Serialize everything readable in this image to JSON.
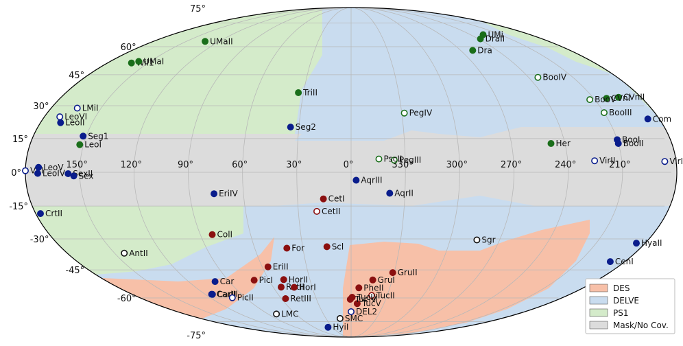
{
  "chart_data": {
    "type": "scatter",
    "projection": "mollweide",
    "title": "",
    "xlabel": "",
    "ylabel": "",
    "grid": true,
    "x_ticks": [
      "150°",
      "120°",
      "90°",
      "60°",
      "30°",
      "0°",
      "330°",
      "300°",
      "270°",
      "240°",
      "210°"
    ],
    "y_ticks": [
      {
        "label": "75°",
        "lat": 75
      },
      {
        "label": "60°",
        "lat": 60
      },
      {
        "label": "45°",
        "lat": 45
      },
      {
        "label": "30°",
        "lat": 30
      },
      {
        "label": "15°",
        "lat": 15
      },
      {
        "label": "0°",
        "lat": 0
      },
      {
        "label": "-15°",
        "lat": -15
      },
      {
        "label": "-30°",
        "lat": -30
      },
      {
        "label": "-45°",
        "lat": -45
      },
      {
        "label": "-60°",
        "lat": -60
      },
      {
        "label": "-75°",
        "lat": -75
      }
    ],
    "legend": {
      "placement": "bottom-right",
      "entries": [
        {
          "name": "DES",
          "color": "#f7c0a8"
        },
        {
          "name": "DELVE",
          "color": "#c9dcef"
        },
        {
          "name": "PS1",
          "color": "#d4ebca"
        },
        {
          "name": "Mask/No Cov.",
          "color": "#dcdcdc"
        }
      ]
    },
    "colors": {
      "des_point": "#8b1010",
      "delve_point": "#0a1d8c",
      "ps1_point": "#1a6e1a",
      "other_point": "#111111",
      "des_region": "#f7c0a8",
      "delve_region": "#c9dcef",
      "ps1_region": "#d4ebca",
      "mask_region": "#dcdcdc"
    },
    "points": [
      {
        "name": "CVnII",
        "ra": 194,
        "dec": 34,
        "survey": "PS1",
        "filled": true
      },
      {
        "name": "CVnI",
        "ra": 202,
        "dec": 33.5,
        "survey": "PS1",
        "filled": true
      },
      {
        "name": "BooIII",
        "ra": 210,
        "dec": 26.8,
        "survey": "PS1",
        "filled": false
      },
      {
        "name": "BooV",
        "ra": 213,
        "dec": 32.9,
        "survey": "PS1",
        "filled": false
      },
      {
        "name": "BooI",
        "ra": 210,
        "dec": 14.5,
        "survey": "DELVE",
        "filled": true
      },
      {
        "name": "BooII",
        "ra": 210,
        "dec": 12.8,
        "survey": "DELVE",
        "filled": true
      },
      {
        "name": "Com",
        "ra": 186.7,
        "dec": 23.9,
        "survey": "DELVE",
        "filled": true
      },
      {
        "name": "LeoVI",
        "ra": 171,
        "dec": 24.9,
        "survey": "DELVE",
        "filled": false
      },
      {
        "name": "LeoII",
        "ra": 168.4,
        "dec": 22.2,
        "survey": "DELVE",
        "filled": true
      },
      {
        "name": "LMiI",
        "ra": 164.3,
        "dec": 28.9,
        "survey": "DELVE",
        "filled": false
      },
      {
        "name": "VirIII",
        "ra": 186.3,
        "dec": 4.8,
        "survey": "DELVE",
        "filled": false
      },
      {
        "name": "VirI",
        "ra": 180,
        "dec": 0.7,
        "survey": "DELVE",
        "filled": false
      },
      {
        "name": "LeoV",
        "ra": 172.8,
        "dec": 2.2,
        "survey": "DELVE",
        "filled": true
      },
      {
        "name": "LeoIV",
        "ra": 173.2,
        "dec": -0.5,
        "survey": "DELVE",
        "filled": true
      },
      {
        "name": "WilI",
        "ra": 162.3,
        "dec": 51.1,
        "survey": "PS1",
        "filled": true
      },
      {
        "name": "UMaI",
        "ra": 158.7,
        "dec": 51.9,
        "survey": "PS1",
        "filled": true
      },
      {
        "name": "UMi",
        "ra": 227.3,
        "dec": 67.2,
        "survey": "PS1",
        "filled": true
      },
      {
        "name": "DraII",
        "ra": 238.2,
        "dec": 64.6,
        "survey": "PS1",
        "filled": true
      },
      {
        "name": "BooIV",
        "ra": 233.7,
        "dec": 43.7,
        "survey": "PS1",
        "filled": false
      },
      {
        "name": "VirII",
        "ra": 225.1,
        "dec": 5.1,
        "survey": "DELVE",
        "filled": false
      },
      {
        "name": "LeoI",
        "ra": 152.1,
        "dec": 12.3,
        "survey": "PS1",
        "filled": true
      },
      {
        "name": "Seg1",
        "ra": 151.8,
        "dec": 16.1,
        "survey": "DELVE",
        "filled": true
      },
      {
        "name": "SexII",
        "ra": 156.4,
        "dec": -0.6,
        "survey": "DELVE",
        "filled": true
      },
      {
        "name": "Sex",
        "ra": 153.3,
        "dec": -1.6,
        "survey": "DELVE",
        "filled": true
      },
      {
        "name": "UMaII",
        "ra": 132.9,
        "dec": 63.1,
        "survey": "PS1",
        "filled": true
      },
      {
        "name": "Dra",
        "ra": 260.1,
        "dec": 57.9,
        "survey": "PS1",
        "filled": true
      },
      {
        "name": "CrtII",
        "ra": 177.3,
        "dec": -18.4,
        "survey": "DELVE",
        "filled": true
      },
      {
        "name": "Her",
        "ra": 247.8,
        "dec": 12.8,
        "survey": "PS1",
        "filled": true
      },
      {
        "name": "HyaII",
        "ra": 185.4,
        "dec": -32,
        "survey": "DELVE",
        "filled": true
      },
      {
        "name": "CenI",
        "ra": 189.6,
        "dec": -40.9,
        "survey": "DELVE",
        "filled": true
      },
      {
        "name": "AntII",
        "ra": 143.9,
        "dec": -36.8,
        "survey": "Other",
        "filled": false
      },
      {
        "name": "Sgr",
        "ra": 283.8,
        "dec": -30.5,
        "survey": "Other",
        "filled": false
      },
      {
        "name": "CarIII",
        "ra": 114.6,
        "dec": -57.9,
        "survey": "DELVE",
        "filled": true
      },
      {
        "name": "CarII",
        "ra": 114.1,
        "dec": -58,
        "survey": "DELVE",
        "filled": true
      },
      {
        "name": "Car",
        "ra": 100.4,
        "dec": -51,
        "survey": "DELVE",
        "filled": true
      },
      {
        "name": "PicII",
        "ra": 101.2,
        "dec": -59.9,
        "survey": "DELVE",
        "filled": false
      },
      {
        "name": "TriII",
        "ra": 33.3,
        "dec": 36.2,
        "survey": "PS1",
        "filled": true
      },
      {
        "name": "PegIV",
        "ra": 328.5,
        "dec": 26.6,
        "survey": "PS1",
        "filled": false
      },
      {
        "name": "Seg2",
        "ra": 34.8,
        "dec": 20.2,
        "survey": "DELVE",
        "filled": true
      },
      {
        "name": "PegIII",
        "ra": 336.1,
        "dec": 5.4,
        "survey": "PS1",
        "filled": false
      },
      {
        "name": "PscII",
        "ra": 344.6,
        "dec": 5.9,
        "survey": "PS1",
        "filled": false
      },
      {
        "name": "AqrII",
        "ra": 338.5,
        "dec": -9.3,
        "survey": "DELVE",
        "filled": true
      },
      {
        "name": "AqrIII",
        "ra": 357.2,
        "dec": -3.5,
        "survey": "DELVE",
        "filled": true
      },
      {
        "name": "CetII",
        "ra": 19.5,
        "dec": -17.4,
        "survey": "DES",
        "filled": false
      },
      {
        "name": "CetI",
        "ra": 15.5,
        "dec": -11.8,
        "survey": "DES",
        "filled": true
      },
      {
        "name": "Scl",
        "ra": 15,
        "dec": -33.7,
        "survey": "DES",
        "filled": true
      },
      {
        "name": "ColI",
        "ra": 82.9,
        "dec": -28,
        "survey": "DES",
        "filled": true
      },
      {
        "name": "EriIV",
        "ra": 76.4,
        "dec": -9.5,
        "survey": "DELVE",
        "filled": true
      },
      {
        "name": "HyiI",
        "ra": 37.4,
        "dec": -79.3,
        "survey": "DELVE",
        "filled": true
      },
      {
        "name": "LMC",
        "ra": 80.9,
        "dec": -69.8,
        "survey": "Other",
        "filled": false
      },
      {
        "name": "SMC",
        "ra": 13.2,
        "dec": -72.8,
        "survey": "Other",
        "filled": false
      },
      {
        "name": "DEL2",
        "ra": 0,
        "dec": -68.3,
        "survey": "DELVE",
        "filled": false
      },
      {
        "name": "RetIII",
        "ra": 56.4,
        "dec": -60.4,
        "survey": "DES",
        "filled": true
      },
      {
        "name": "RetII",
        "ra": 53.9,
        "dec": -54,
        "survey": "DES",
        "filled": true
      },
      {
        "name": "PicI",
        "ra": 70.9,
        "dec": -50.3,
        "survey": "DES",
        "filled": true
      },
      {
        "name": "EriII",
        "ra": 56.1,
        "dec": -43.5,
        "survey": "DES",
        "filled": true
      },
      {
        "name": "HorII",
        "ra": 49.1,
        "dec": -50,
        "survey": "DES",
        "filled": true
      },
      {
        "name": "HorI",
        "ra": 43.9,
        "dec": -54.1,
        "survey": "DES",
        "filled": true
      },
      {
        "name": "For",
        "ra": 40,
        "dec": -34.4,
        "survey": "DES",
        "filled": true
      },
      {
        "name": "GruII",
        "ra": 331,
        "dec": -46.4,
        "survey": "DES",
        "filled": true
      },
      {
        "name": "GruI",
        "ra": 344.2,
        "dec": -50.2,
        "survey": "DES",
        "filled": true
      },
      {
        "name": "TucII",
        "ra": 342.9,
        "dec": -58.6,
        "survey": "DES",
        "filled": false
      },
      {
        "name": "TucV",
        "ra": 354.4,
        "dec": -63.3,
        "survey": "DES",
        "filled": true
      },
      {
        "name": "TucIV",
        "ra": 0.7,
        "dec": -60.8,
        "survey": "DES",
        "filled": true
      },
      {
        "name": "PheII",
        "ra": 354,
        "dec": -54.4,
        "survey": "DES",
        "filled": true
      },
      {
        "name": "TucIII",
        "ra": 359.1,
        "dec": -59.6,
        "survey": "DES",
        "filled": true
      }
    ],
    "labels": [
      {
        "name": "CVnII",
        "text": "CVnII"
      },
      {
        "name": "CVnI",
        "text": "CVnI"
      },
      {
        "name": "BooIII",
        "text": "BooIII"
      },
      {
        "name": "BooV",
        "text": "BooV"
      },
      {
        "name": "BooI",
        "text": "BooI"
      },
      {
        "name": "BooII",
        "text": "BooII"
      },
      {
        "name": "Com",
        "text": "Com"
      },
      {
        "name": "LeoVI",
        "text": "LeoVI"
      },
      {
        "name": "LeoII",
        "text": "LeoII"
      },
      {
        "name": "LMiI",
        "text": "LMiI"
      },
      {
        "name": "VirIII",
        "text": "VirIII"
      },
      {
        "name": "VirI",
        "text": "VirI"
      },
      {
        "name": "LeoV",
        "text": "LeoV"
      },
      {
        "name": "LeoIV",
        "text": "LeoIV"
      },
      {
        "name": "WilI",
        "text": "Wil1"
      },
      {
        "name": "UMaI",
        "text": "UMaI"
      },
      {
        "name": "UMi",
        "text": "UMi"
      },
      {
        "name": "DraII",
        "text": "DraII"
      },
      {
        "name": "BooIV",
        "text": "BooIV"
      },
      {
        "name": "VirII",
        "text": "VirII"
      },
      {
        "name": "LeoI",
        "text": "LeoI"
      },
      {
        "name": "Seg1",
        "text": "Seg1"
      },
      {
        "name": "SexII",
        "text": "SexII"
      },
      {
        "name": "Sex",
        "text": "Sex"
      },
      {
        "name": "UMaII",
        "text": "UMaII"
      },
      {
        "name": "Dra",
        "text": "Dra"
      },
      {
        "name": "CrtII",
        "text": "CrtII"
      },
      {
        "name": "Her",
        "text": "Her"
      },
      {
        "name": "HyaII",
        "text": "HyaII"
      },
      {
        "name": "CenI",
        "text": "CenI"
      },
      {
        "name": "AntII",
        "text": "AntII"
      },
      {
        "name": "Sgr",
        "text": "Sgr"
      },
      {
        "name": "CarIII",
        "text": "CarIII"
      },
      {
        "name": "CarII",
        "text": "CarII"
      },
      {
        "name": "Car",
        "text": "Car"
      },
      {
        "name": "PicII",
        "text": "PicII"
      },
      {
        "name": "TriII",
        "text": "TriII"
      },
      {
        "name": "PegIV",
        "text": "PegIV"
      },
      {
        "name": "Seg2",
        "text": "Seg2"
      },
      {
        "name": "PegIII",
        "text": "PegIII"
      },
      {
        "name": "PscII",
        "text": "PscII"
      },
      {
        "name": "AqrII",
        "text": "AqrII"
      },
      {
        "name": "AqrIII",
        "text": "AqrIII"
      },
      {
        "name": "CetII",
        "text": "CetII"
      },
      {
        "name": "CetI",
        "text": "CetI"
      },
      {
        "name": "Scl",
        "text": "Scl"
      },
      {
        "name": "ColI",
        "text": "ColI"
      },
      {
        "name": "EriIV",
        "text": "EriIV"
      },
      {
        "name": "HyiI",
        "text": "HyiI"
      },
      {
        "name": "LMC",
        "text": "LMC"
      },
      {
        "name": "SMC",
        "text": "SMC"
      },
      {
        "name": "DEL2",
        "text": "DEL2"
      },
      {
        "name": "RetIII",
        "text": "RetIII"
      },
      {
        "name": "RetII",
        "text": "RetII"
      },
      {
        "name": "PicI",
        "text": "PicI"
      },
      {
        "name": "EriII",
        "text": "EriII"
      },
      {
        "name": "HorII",
        "text": "HorII"
      },
      {
        "name": "HorI",
        "text": "HorI"
      },
      {
        "name": "For",
        "text": "For"
      },
      {
        "name": "GruII",
        "text": "GruII"
      },
      {
        "name": "GruI",
        "text": "GruI"
      },
      {
        "name": "TucII",
        "text": "TucII"
      },
      {
        "name": "TucV",
        "text": "TucV"
      },
      {
        "name": "TucIV",
        "text": "TucIV"
      },
      {
        "name": "PheII",
        "text": "PheII"
      },
      {
        "name": "TucIII",
        "text": "TucIII"
      }
    ]
  }
}
